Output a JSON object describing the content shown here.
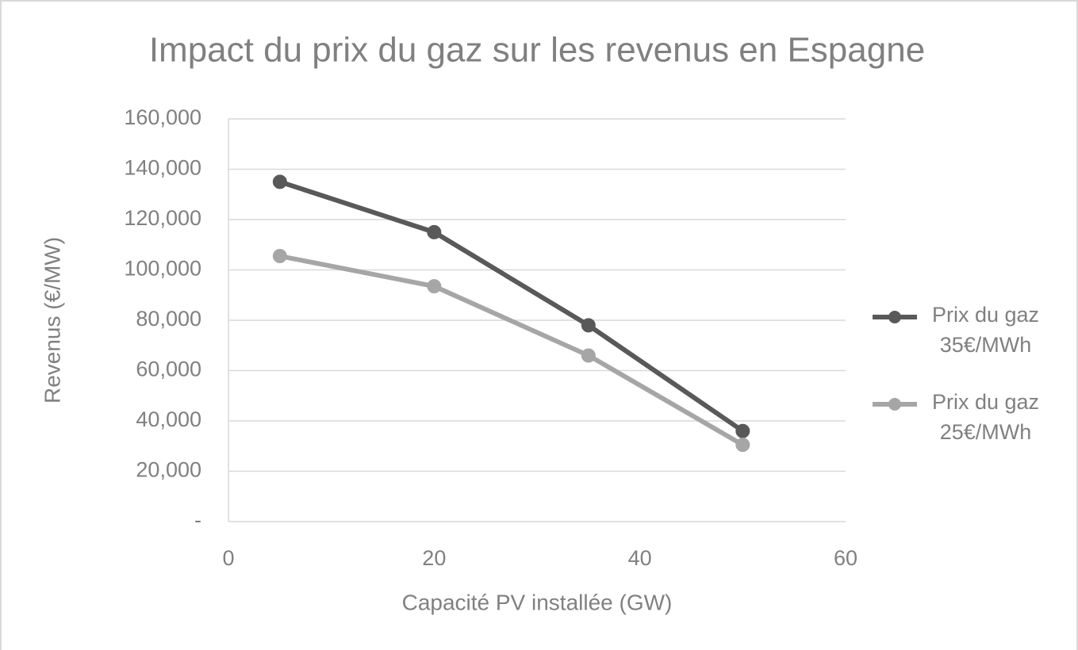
{
  "chart_data": {
    "type": "line",
    "title": "Impact du prix du gaz sur les revenus en Espagne",
    "xlabel": "Capacité PV installée (GW)",
    "ylabel": "Revenus (€/MW)",
    "x": [
      5,
      20,
      35,
      50
    ],
    "series": [
      {
        "name": "Prix du gaz 35€/MWh",
        "color": "#595959",
        "values": [
          135000,
          115000,
          78000,
          36000
        ]
      },
      {
        "name": "Prix du gaz 25€/MWh",
        "color": "#a6a6a6",
        "values": [
          105500,
          93500,
          66000,
          30500
        ]
      }
    ],
    "xlim": [
      0,
      60
    ],
    "xticks": [
      0,
      20,
      40,
      60
    ],
    "ylim": [
      0,
      160000
    ],
    "yticks": [
      {
        "value": 0,
        "label": "-"
      },
      {
        "value": 20000,
        "label": "20,000"
      },
      {
        "value": 40000,
        "label": "40,000"
      },
      {
        "value": 60000,
        "label": "60,000"
      },
      {
        "value": 80000,
        "label": "80,000"
      },
      {
        "value": 100000,
        "label": "100,000"
      },
      {
        "value": 120000,
        "label": "120,000"
      },
      {
        "value": 140000,
        "label": "140,000"
      },
      {
        "value": 160000,
        "label": "160,000"
      }
    ],
    "grid": true,
    "legend": "right"
  }
}
